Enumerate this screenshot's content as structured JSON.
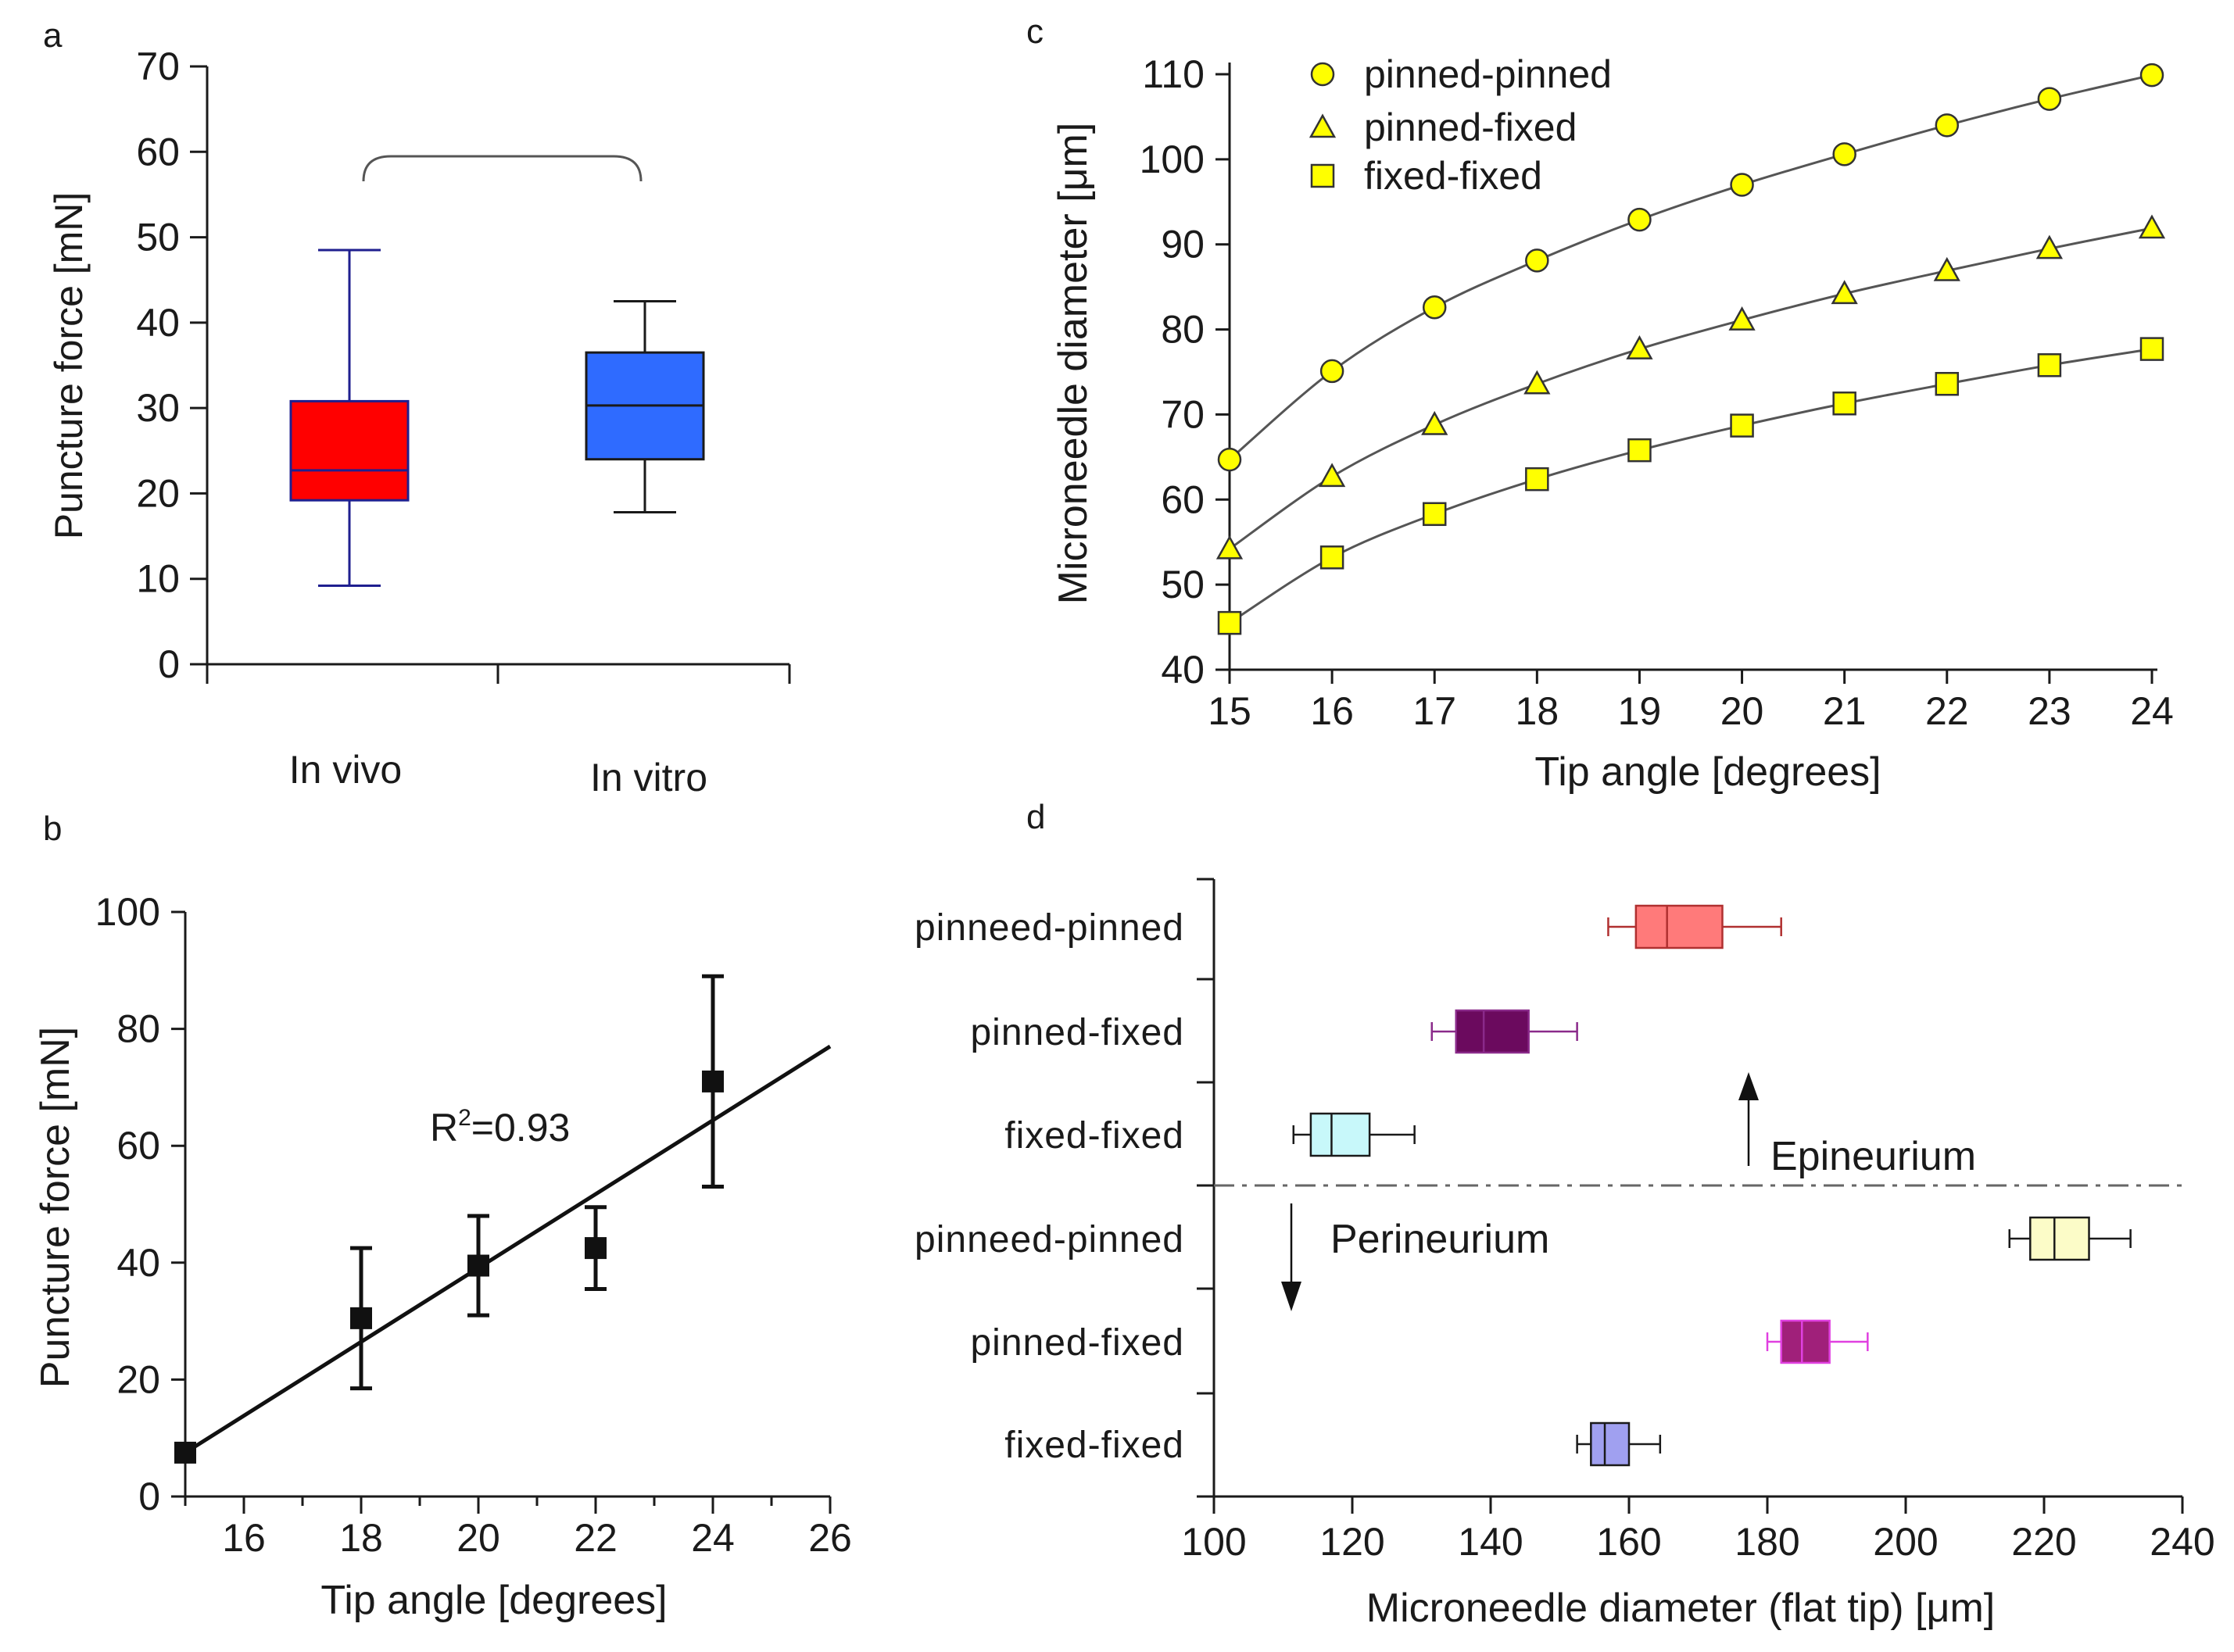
{
  "chart_data": [
    {
      "panel": "a",
      "type": "box",
      "ylabel": "Puncture force [mN]",
      "ylim": [
        0,
        70
      ],
      "yticks": [
        0,
        10,
        20,
        30,
        40,
        50,
        60,
        70
      ],
      "categories": [
        "In vivo",
        "In vitro"
      ],
      "boxes": [
        {
          "label": "In vivo",
          "min": 9.2,
          "q1": 19.2,
          "median": 22.7,
          "q3": 30.8,
          "max": 48.5,
          "fill": "#ff0000",
          "line": "#1f1f8f"
        },
        {
          "label": "In vitro",
          "min": 17.8,
          "q1": 24.0,
          "median": 30.3,
          "q3": 36.5,
          "max": 42.5,
          "fill": "#2f6bff",
          "line": "#1a1a1a"
        }
      ],
      "comparison_bracket": [
        "In vivo",
        "In vitro"
      ]
    },
    {
      "panel": "b",
      "type": "scatter",
      "xlabel": "Tip angle [degrees]",
      "ylabel": "Puncture force [mN]",
      "xlim": [
        15,
        26
      ],
      "ylim": [
        0,
        100
      ],
      "xticks": [
        16,
        18,
        20,
        22,
        24,
        26
      ],
      "yticks": [
        0,
        20,
        40,
        60,
        80,
        100
      ],
      "points": [
        {
          "x": 15,
          "y": 7.5,
          "err_low": 7.5,
          "err_high": 7.5
        },
        {
          "x": 18,
          "y": 30.5,
          "err_low": 18.5,
          "err_high": 42.5
        },
        {
          "x": 20,
          "y": 39.5,
          "err_low": 31,
          "err_high": 48
        },
        {
          "x": 22,
          "y": 42.5,
          "err_low": 35.5,
          "err_high": 49.5
        },
        {
          "x": 24,
          "y": 71,
          "err_low": 53,
          "err_high": 89
        }
      ],
      "fit_line": {
        "x": [
          15,
          26
        ],
        "y": [
          7.5,
          77
        ]
      },
      "annotation": {
        "prefix": "R",
        "sup": "2",
        "suffix": "=0.93"
      }
    },
    {
      "panel": "c",
      "type": "line",
      "xlabel": "Tip angle [degrees]",
      "ylabel_main": "Microneedle diameter [",
      "ylabel_mu": "μ",
      "ylabel_end": "m]",
      "xlim": [
        15,
        24
      ],
      "ylim": [
        40,
        110
      ],
      "x": [
        15,
        16,
        17,
        18,
        19,
        20,
        21,
        22,
        23,
        24
      ],
      "yticks": [
        40,
        50,
        60,
        70,
        80,
        90,
        100,
        110
      ],
      "series": [
        {
          "name": "pinned-pinned",
          "marker": "circle",
          "values": [
            64.7,
            75.1,
            82.6,
            88.1,
            92.9,
            97.0,
            100.6,
            104.0,
            107.1,
            109.9
          ]
        },
        {
          "name": "pinned-fixed",
          "marker": "triangle",
          "values": [
            54.2,
            62.7,
            68.8,
            73.6,
            77.7,
            81.1,
            84.2,
            86.9,
            89.5,
            91.9
          ]
        },
        {
          "name": "fixed-fixed",
          "marker": "square",
          "values": [
            45.5,
            53.2,
            58.3,
            62.4,
            65.8,
            68.7,
            71.3,
            73.6,
            75.8,
            77.7
          ]
        }
      ],
      "marker_fill": "#ffff00",
      "legend_position": "top-left"
    },
    {
      "panel": "d",
      "type": "horizontal-box",
      "xlabel_main": "Microneedle diameter (flat tip) [",
      "xlabel_mu": "μ",
      "xlabel_end": "m]",
      "xlim": [
        100,
        240
      ],
      "xticks": [
        100,
        120,
        140,
        160,
        180,
        200,
        220,
        240
      ],
      "rows": [
        {
          "label": "pinneed-pinned",
          "min": 157,
          "q1": 161,
          "median": 165.5,
          "q3": 173.5,
          "max": 182,
          "fill": "#ff7a7a",
          "line": "#b03030"
        },
        {
          "label": "pinned-fixed",
          "min": 131.5,
          "q1": 135,
          "median": 139,
          "q3": 145.5,
          "max": 152.5,
          "fill": "#6b0a5e",
          "line": "#8a2a8a"
        },
        {
          "label": "fixed-fixed",
          "min": 111.5,
          "q1": 114,
          "median": 117,
          "q3": 122.5,
          "max": 129,
          "fill": "#c8f8fa",
          "line": "#1a1a1a"
        },
        {
          "label": "pinneed-pinned",
          "min": 215,
          "q1": 218,
          "median": 221.5,
          "q3": 226.5,
          "max": 232.5,
          "fill": "#fcfcc8",
          "line": "#1a1a1a"
        },
        {
          "label": "pinned-fixed",
          "min": 180,
          "q1": 182,
          "median": 185,
          "q3": 189,
          "max": 194.5,
          "fill": "#a0207a",
          "line": "#e040e0"
        },
        {
          "label": "fixed-fixed",
          "min": 152.5,
          "q1": 154.5,
          "median": 156.5,
          "q3": 160,
          "max": 164.5,
          "fill": "#a0a0f0",
          "line": "#1a1a1a"
        }
      ],
      "annotations": {
        "upper": "Epineurium",
        "lower": "Perineurium"
      }
    }
  ]
}
